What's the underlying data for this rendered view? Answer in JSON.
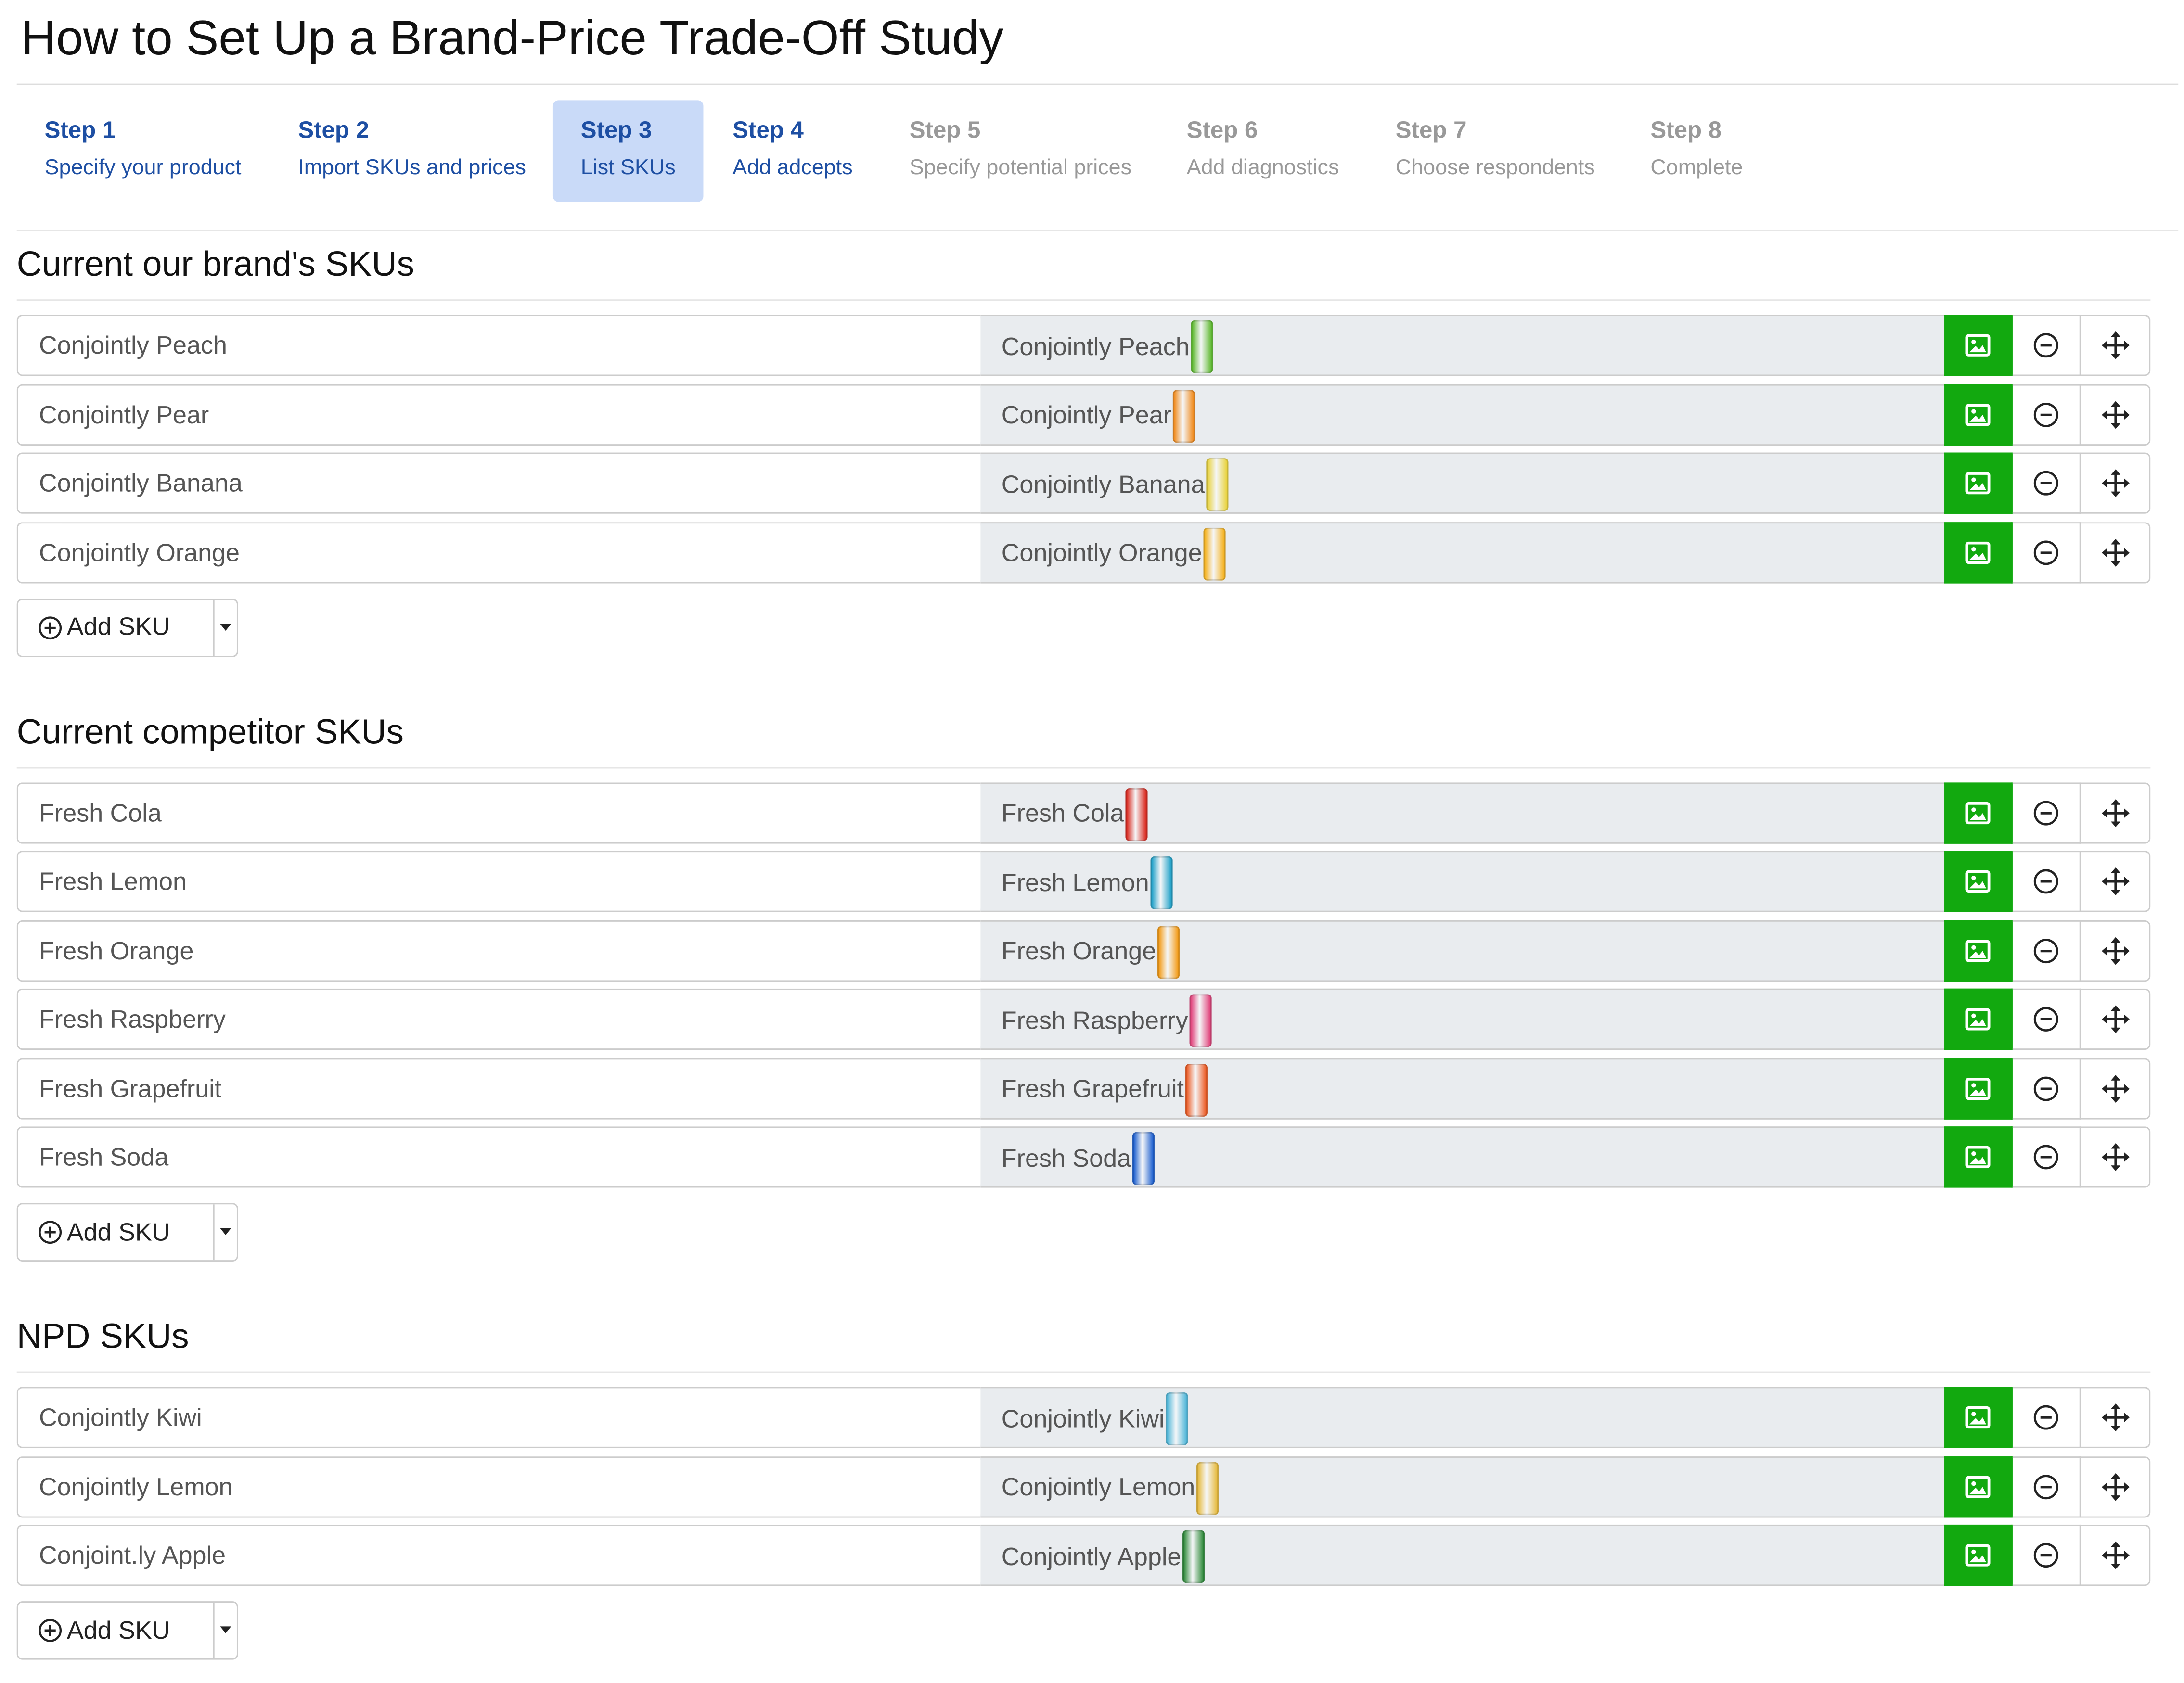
{
  "header": {
    "title": "How to Set Up a Brand-Price Trade-Off Study"
  },
  "steps": [
    {
      "label": "Step 1",
      "description": "Specify your product",
      "status": "enabled"
    },
    {
      "label": "Step 2",
      "description": "Import SKUs and prices",
      "status": "enabled"
    },
    {
      "label": "Step 3",
      "description": "List SKUs",
      "status": "active"
    },
    {
      "label": "Step 4",
      "description": "Add adcepts",
      "status": "enabled"
    },
    {
      "label": "Step 5",
      "description": "Specify potential prices",
      "status": "disabled"
    },
    {
      "label": "Step 6",
      "description": "Add diagnostics",
      "status": "disabled"
    },
    {
      "label": "Step 7",
      "description": "Choose respondents",
      "status": "disabled"
    },
    {
      "label": "Step 8",
      "description": "Complete",
      "status": "disabled"
    }
  ],
  "sections": [
    {
      "title": "Current our brand's SKUs",
      "add_button": "Add SKU",
      "skus": [
        {
          "name": "Conjointly Peach",
          "display": "Conjointly Peach",
          "image_color": "#5cb82e"
        },
        {
          "name": "Conjointly Pear",
          "display": "Conjointly Pear",
          "image_color": "#f08a1c"
        },
        {
          "name": "Conjointly Banana",
          "display": "Conjointly Banana",
          "image_color": "#e8d23a"
        },
        {
          "name": "Conjointly Orange",
          "display": "Conjointly Orange",
          "image_color": "#f5b21e"
        }
      ]
    },
    {
      "title": "Current competitor SKUs",
      "add_button": "Add SKU",
      "skus": [
        {
          "name": "Fresh Cola",
          "display": "Fresh Cola",
          "image_color": "#d9261c"
        },
        {
          "name": "Fresh Lemon",
          "display": "Fresh Lemon",
          "image_color": "#1fa0c8"
        },
        {
          "name": "Fresh Orange",
          "display": "Fresh Orange",
          "image_color": "#f39a14"
        },
        {
          "name": "Fresh Raspberry",
          "display": "Fresh Raspberry",
          "image_color": "#e0417a"
        },
        {
          "name": "Fresh Grapefruit",
          "display": "Fresh Grapefruit",
          "image_color": "#ec5a22"
        },
        {
          "name": "Fresh Soda",
          "display": "Fresh Soda",
          "image_color": "#1c5fd0"
        }
      ]
    },
    {
      "title": "NPD SKUs",
      "add_button": "Add SKU",
      "skus": [
        {
          "name": "Conjointly Kiwi",
          "display": "Conjointly Kiwi",
          "image_color": "#4fb6d8"
        },
        {
          "name": "Conjointly Lemon",
          "display": "Conjointly Lemon",
          "image_color": "#e6b93a"
        },
        {
          "name": "Conjoint.ly Apple",
          "display": "Conjointly Apple",
          "image_color": "#2f8a3a"
        }
      ]
    }
  ]
}
